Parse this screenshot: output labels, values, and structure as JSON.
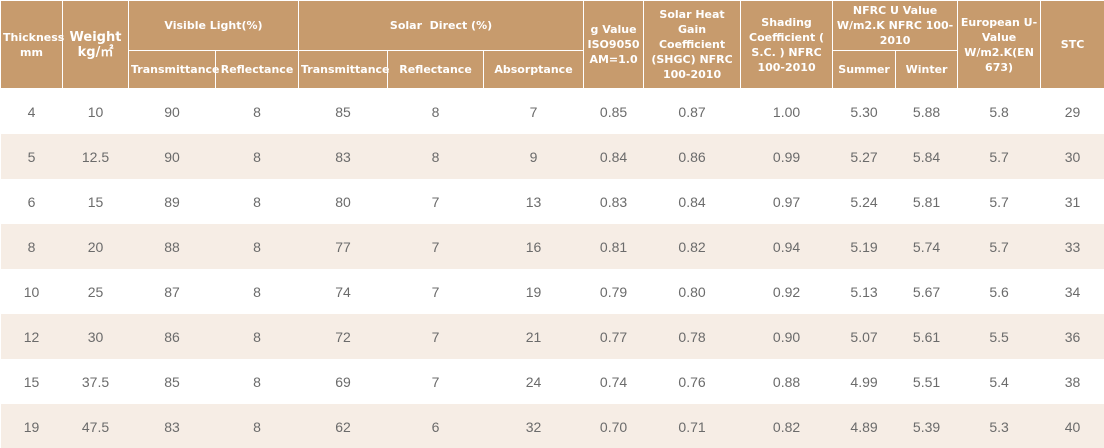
{
  "table": {
    "header": {
      "thickness": "Thickness mm",
      "weight": "Weight kg/㎡",
      "visible_light": "Visible Light(%)",
      "solar_direct": "Solar  Direct (%)",
      "g_value": "g Value ISO9050 AM=1.0",
      "shgc": "Solar Heat Gain Coefficient (SHGC) NFRC 100-2010",
      "shading": "Shading Coefficient ( S.C. ) NFRC 100-2010",
      "nfrc_u": "NFRC U Value W/m2.K NFRC 100-2010",
      "european_u": "European U-Value W/m2.K(EN 673)",
      "stc": "STC",
      "vl_transmittance": "Transmittance",
      "vl_reflectance": "Reflectance",
      "sd_transmittance": "Transmittance",
      "sd_reflectance": "Reflectance",
      "sd_absorptance": "Absorptance",
      "summer": "Summer",
      "winter": "Winter"
    },
    "rows": [
      [
        "4",
        "10",
        "90",
        "8",
        "85",
        "8",
        "7",
        "0.85",
        "0.87",
        "1.00",
        "5.30",
        "5.88",
        "5.8",
        "29"
      ],
      [
        "5",
        "12.5",
        "90",
        "8",
        "83",
        "8",
        "9",
        "0.84",
        "0.86",
        "0.99",
        "5.27",
        "5.84",
        "5.7",
        "30"
      ],
      [
        "6",
        "15",
        "89",
        "8",
        "80",
        "7",
        "13",
        "0.83",
        "0.84",
        "0.97",
        "5.24",
        "5.81",
        "5.7",
        "31"
      ],
      [
        "8",
        "20",
        "88",
        "8",
        "77",
        "7",
        "16",
        "0.81",
        "0.82",
        "0.94",
        "5.19",
        "5.74",
        "5.7",
        "33"
      ],
      [
        "10",
        "25",
        "87",
        "8",
        "74",
        "7",
        "19",
        "0.79",
        "0.80",
        "0.92",
        "5.13",
        "5.67",
        "5.6",
        "34"
      ],
      [
        "12",
        "30",
        "86",
        "8",
        "72",
        "7",
        "21",
        "0.77",
        "0.78",
        "0.90",
        "5.07",
        "5.61",
        "5.5",
        "36"
      ],
      [
        "15",
        "37.5",
        "85",
        "8",
        "69",
        "7",
        "24",
        "0.74",
        "0.76",
        "0.88",
        "4.99",
        "5.51",
        "5.4",
        "38"
      ],
      [
        "19",
        "47.5",
        "83",
        "8",
        "62",
        "6",
        "32",
        "0.70",
        "0.71",
        "0.82",
        "4.89",
        "5.39",
        "5.3",
        "40"
      ]
    ]
  }
}
